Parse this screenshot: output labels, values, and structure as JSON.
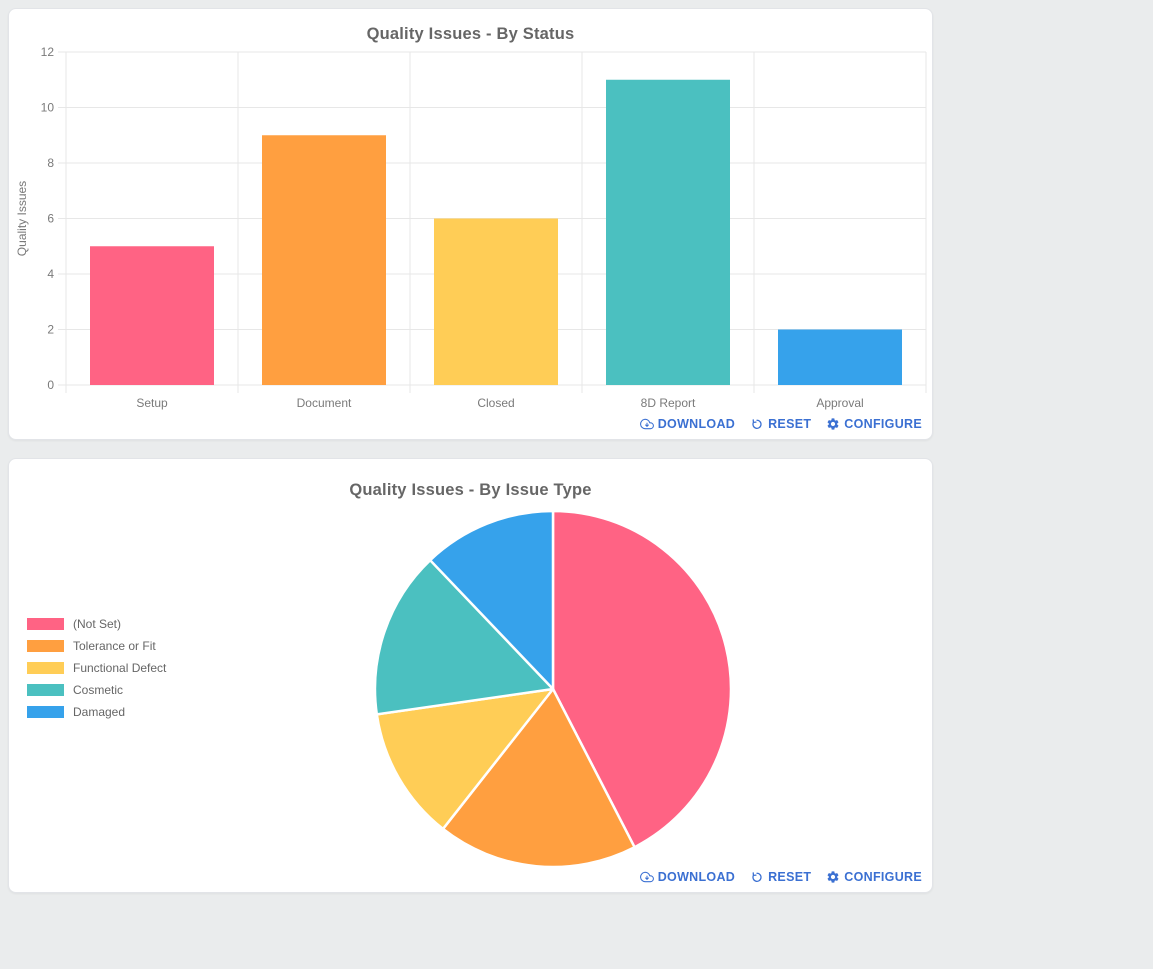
{
  "cards": [
    {
      "title": "Quality Issues - By Status"
    },
    {
      "title": "Quality Issues - By Issue Type"
    }
  ],
  "actions": {
    "download_label": "DOWNLOAD",
    "reset_label": "RESET",
    "configure_label": "CONFIGURE",
    "icons": [
      "cloud-download-icon",
      "reset-icon",
      "gear-icon"
    ]
  },
  "chart_data": [
    {
      "type": "bar",
      "title": "Quality Issues - By Status",
      "categories": [
        "Setup",
        "Document",
        "Closed",
        "8D Report",
        "Approval"
      ],
      "values": [
        5,
        9,
        6,
        11,
        2
      ],
      "colors": [
        "#FF6384",
        "#FF9F40",
        "#FFCD56",
        "#4BC0C0",
        "#36A2EB"
      ],
      "xlabel": "",
      "ylabel": "Quality Issues",
      "ylim": [
        0,
        12
      ],
      "yticks": [
        0,
        2,
        4,
        6,
        8,
        10,
        12
      ],
      "grid": true,
      "legend": "none"
    },
    {
      "type": "pie",
      "title": "Quality Issues - By Issue Type",
      "labels": [
        "(Not Set)",
        "Tolerance or Fit",
        "Functional Defect",
        "Cosmetic",
        "Damaged"
      ],
      "values": [
        14,
        6,
        4,
        5,
        4
      ],
      "colors": [
        "#FF6384",
        "#FF9F40",
        "#FFCD56",
        "#4BC0C0",
        "#36A2EB"
      ],
      "legend_position": "left",
      "start_angle_deg": -90,
      "direction": "clockwise"
    }
  ],
  "colors": {
    "page_bg": "#eaeced",
    "card_bg": "#ffffff",
    "card_border": "#e2e4e8",
    "grid": "#e7e7e7",
    "axis_text": "#7a7a7a",
    "title_text": "#666666",
    "link": "#3b70d2",
    "pie_slice_border": "#ffffff"
  }
}
